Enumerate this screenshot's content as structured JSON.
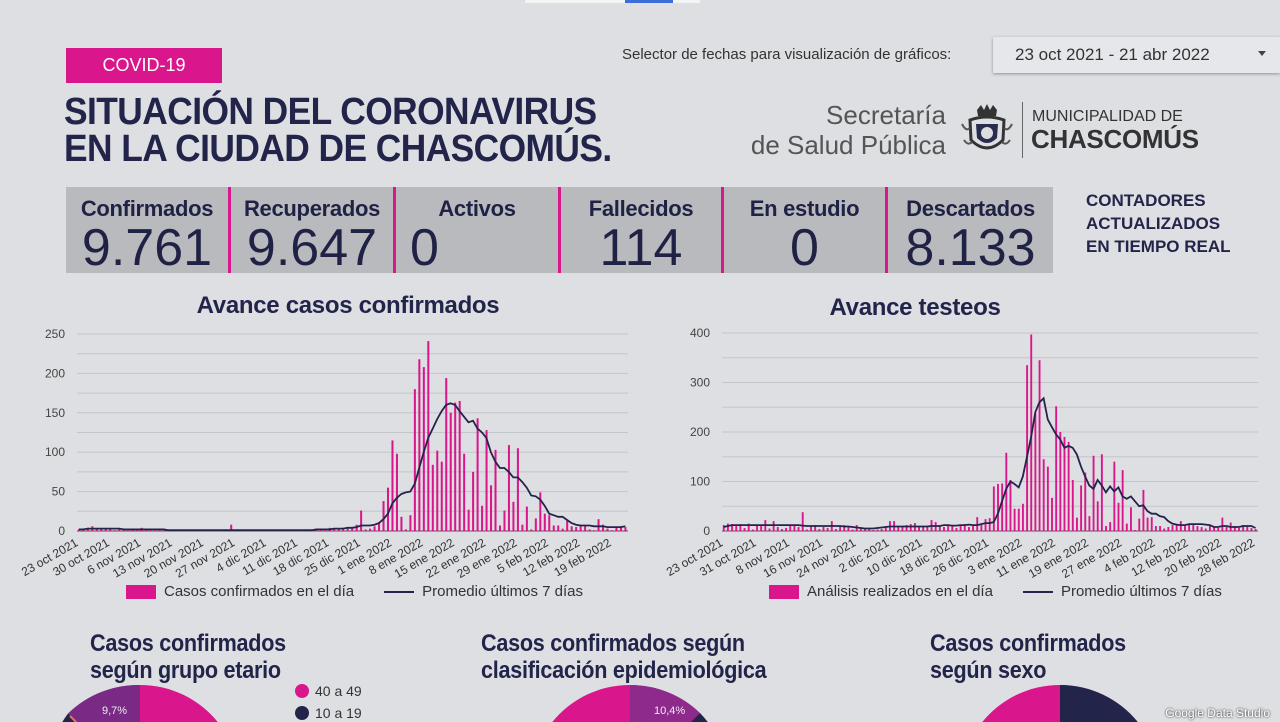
{
  "header": {
    "badge": "COVID-19",
    "title_line1": "SITUACIÓN DEL CORONAVIRUS",
    "title_line2": "EN LA CIUDAD DE CHASCOMÚS.",
    "date_selector_label": "Selector de fechas para visualización de gráficos:",
    "date_range": "23 oct 2021 - 21 abr 2022",
    "logo": {
      "secretaria_line1": "Secretaría",
      "secretaria_line2": "de Salud Pública",
      "muni_line1": "MUNICIPALIDAD DE",
      "muni_line2": "CHASCOMÚS"
    }
  },
  "kpis": [
    {
      "label": "Confirmados",
      "value": "9.761"
    },
    {
      "label": "Recuperados",
      "value": "9.647"
    },
    {
      "label": "Activos",
      "value": "0"
    },
    {
      "label": "Fallecidos",
      "value": "114"
    },
    {
      "label": "En estudio",
      "value": "0"
    },
    {
      "label": "Descartados",
      "value": "8.133"
    }
  ],
  "counters_note": [
    "CONTADORES",
    "ACTUALIZADOS",
    "EN TIEMPO REAL"
  ],
  "colors": {
    "accent": "#d9168b",
    "navy": "#22244a",
    "background": "#dedfe2"
  },
  "chart_data": [
    {
      "type": "bar",
      "title": "Avance casos confirmados",
      "x_tick_labels": [
        "23 oct 2021",
        "30 oct 2021",
        "6 nov 2021",
        "13 nov 2021",
        "20 nov 2021",
        "27 nov 2021",
        "4 dic 2021",
        "11 dic 2021",
        "18 dic 2021",
        "25 dic 2021",
        "1 ene 2022",
        "8 ene 2022",
        "15 ene 2022",
        "22 ene 2022",
        "29 ene 2022",
        "5 feb 2022",
        "12 feb 2022",
        "19 feb 2022"
      ],
      "x_tick_step_days": 7,
      "y_ticks": [
        0,
        50,
        100,
        150,
        200,
        250
      ],
      "ylim": [
        0,
        250
      ],
      "grid": true,
      "legend_position": "bottom",
      "series": [
        {
          "name": "Casos confirmados en el día",
          "type": "bar",
          "color": "#d9168b",
          "values": [
            2,
            3,
            4,
            6,
            3,
            4,
            2,
            3,
            1,
            2,
            2,
            1,
            3,
            2,
            4,
            2,
            1,
            1,
            2,
            1,
            1,
            0,
            1,
            0,
            0,
            1,
            0,
            0,
            1,
            0,
            1,
            0,
            1,
            1,
            8,
            1,
            0,
            1,
            0,
            1,
            0,
            1,
            0,
            1,
            0,
            0,
            1,
            0,
            1,
            0,
            1,
            2,
            1,
            2,
            3,
            1,
            4,
            2,
            3,
            4,
            3,
            4,
            8,
            26,
            2,
            3,
            6,
            10,
            38,
            55,
            115,
            98,
            18,
            2,
            20,
            180,
            218,
            208,
            241,
            84,
            102,
            88,
            194,
            150,
            163,
            165,
            98,
            27,
            75,
            143,
            32,
            128,
            58,
            103,
            7,
            26,
            109,
            37,
            105,
            8,
            31,
            2,
            16,
            49,
            22,
            20,
            7,
            7,
            3,
            13,
            6,
            5,
            7,
            7,
            2,
            1,
            15,
            8,
            3,
            1,
            4,
            6,
            5
          ]
        },
        {
          "name": "Promedio últimos 7 días",
          "type": "line",
          "color": "#22244a",
          "values": [
            2,
            2,
            3,
            3,
            3,
            3,
            3,
            3,
            3,
            3,
            2,
            2,
            2,
            2,
            2,
            2,
            2,
            2,
            2,
            2,
            1,
            1,
            1,
            1,
            1,
            1,
            1,
            1,
            1,
            1,
            1,
            1,
            1,
            1,
            1,
            1,
            1,
            1,
            1,
            1,
            1,
            1,
            1,
            1,
            1,
            1,
            1,
            1,
            1,
            1,
            1,
            1,
            1,
            2,
            2,
            2,
            2,
            3,
            3,
            3,
            4,
            4,
            5,
            7,
            7,
            7,
            8,
            10,
            15,
            22,
            35,
            42,
            47,
            49,
            50,
            60,
            80,
            100,
            118,
            130,
            142,
            152,
            160,
            162,
            160,
            152,
            145,
            138,
            140,
            130,
            125,
            118,
            100,
            88,
            80,
            80,
            75,
            68,
            68,
            62,
            55,
            45,
            44,
            40,
            32,
            22,
            20,
            18,
            18,
            14,
            10,
            8,
            7,
            7,
            7,
            6,
            6,
            6,
            5,
            5,
            5,
            5,
            6
          ]
        }
      ]
    },
    {
      "type": "bar",
      "title": "Avance testeos",
      "x_tick_labels": [
        "23 oct 2021",
        "31 oct 2021",
        "8 nov 2021",
        "16 nov 2021",
        "24 nov 2021",
        "2 dic 2021",
        "10 dic 2021",
        "18 dic 2021",
        "26 dic 2021",
        "3 ene 2022",
        "11 ene 2022",
        "19 ene 2022",
        "27 ene 2022",
        "4 feb 2022",
        "12 feb 2022",
        "20 feb 2022",
        "28 feb 2022"
      ],
      "x_tick_step_days": 8,
      "y_ticks": [
        0,
        100,
        200,
        300,
        400
      ],
      "ylim": [
        0,
        400
      ],
      "grid": true,
      "legend_position": "bottom",
      "series": [
        {
          "name": "Análisis realizados en el día",
          "type": "bar",
          "color": "#d9168b",
          "values": [
            12,
            15,
            14,
            10,
            14,
            6,
            15,
            3,
            12,
            10,
            22,
            5,
            20,
            8,
            4,
            6,
            10,
            12,
            8,
            38,
            3,
            10,
            12,
            4,
            8,
            6,
            20,
            4,
            10,
            12,
            8,
            3,
            12,
            6,
            4,
            6,
            2,
            3,
            4,
            8,
            20,
            20,
            10,
            8,
            12,
            14,
            16,
            8,
            10,
            9,
            22,
            18,
            10,
            8,
            10,
            12,
            6,
            12,
            14,
            8,
            10,
            28,
            12,
            24,
            26,
            90,
            95,
            96,
            158,
            103,
            45,
            45,
            55,
            335,
            397,
            238,
            345,
            145,
            130,
            67,
            252,
            200,
            190,
            180,
            103,
            27,
            92,
            118,
            30,
            152,
            60,
            155,
            10,
            18,
            140,
            57,
            123,
            15,
            48,
            2,
            25,
            83,
            27,
            28,
            10,
            10,
            5,
            8,
            12,
            14,
            20,
            10,
            14,
            12,
            10,
            8,
            5,
            12,
            8,
            6,
            27,
            8,
            17,
            10,
            6,
            12,
            10,
            6,
            4
          ]
        },
        {
          "name": "Promedio últimos 7 días",
          "type": "line",
          "color": "#22244a",
          "values": [
            8,
            10,
            12,
            12,
            12,
            12,
            12,
            12,
            12,
            12,
            12,
            12,
            12,
            12,
            12,
            12,
            12,
            12,
            12,
            11,
            10,
            10,
            10,
            10,
            10,
            10,
            10,
            10,
            10,
            9,
            9,
            8,
            7,
            6,
            5,
            5,
            5,
            6,
            7,
            8,
            9,
            9,
            9,
            9,
            9,
            9,
            9,
            9,
            9,
            9,
            10,
            10,
            10,
            12,
            12,
            11,
            11,
            12,
            12,
            13,
            12,
            12,
            14,
            16,
            16,
            18,
            35,
            60,
            85,
            100,
            95,
            88,
            110,
            150,
            190,
            240,
            260,
            268,
            225,
            210,
            195,
            185,
            168,
            172,
            168,
            155,
            130,
            110,
            92,
            85,
            103,
            92,
            78,
            90,
            80,
            88,
            70,
            65,
            70,
            60,
            50,
            52,
            40,
            35,
            35,
            30,
            28,
            20,
            15,
            13,
            12,
            12,
            14,
            14,
            14,
            14,
            13,
            12,
            8,
            8,
            10,
            10,
            8,
            8,
            8,
            10,
            10,
            10,
            6
          ]
        }
      ]
    }
  ],
  "bottom": {
    "age": {
      "title1": "Casos confirmados",
      "title2": "según grupo etario",
      "slice_label": "9,7%",
      "legend": [
        "40 a 49",
        "10 a 19"
      ]
    },
    "epi": {
      "title1": "Casos confirmados según",
      "title2": "clasificación epidemiológica",
      "slice_label": "10,4%"
    },
    "sex": {
      "title1": "Casos confirmados",
      "title2": "según sexo"
    },
    "watermark": "Google Data Studio"
  }
}
